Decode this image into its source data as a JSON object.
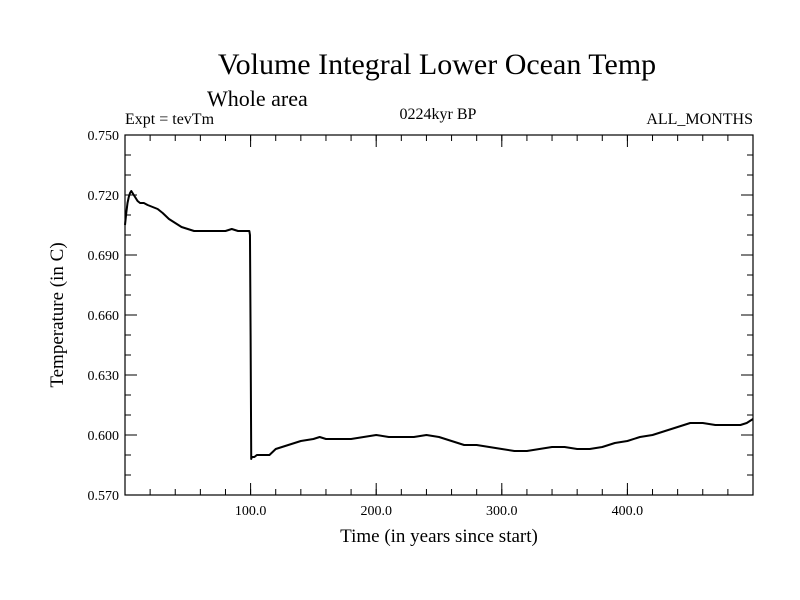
{
  "chart_data": {
    "type": "line",
    "title": "Volume Integral Lower Ocean Temp",
    "subtitle": "Whole area",
    "experiment_label": "Expt = tevTm",
    "period_label": "0224kyr BP",
    "months_label": "ALL_MONTHS",
    "xlabel": "Time (in years since start)",
    "ylabel": "Temperature (in C)",
    "xlim": [
      0,
      500
    ],
    "ylim": [
      0.57,
      0.75
    ],
    "x_tick_labels": [
      {
        "value": 100,
        "label": "100.0"
      },
      {
        "value": 200,
        "label": "200.0"
      },
      {
        "value": 300,
        "label": "300.0"
      },
      {
        "value": 400,
        "label": "400.0"
      }
    ],
    "y_tick_labels": [
      {
        "value": 0.75,
        "label": "0.750"
      },
      {
        "value": 0.72,
        "label": "0.720"
      },
      {
        "value": 0.69,
        "label": "0.690"
      },
      {
        "value": 0.66,
        "label": "0.660"
      },
      {
        "value": 0.63,
        "label": "0.630"
      },
      {
        "value": 0.6,
        "label": "0.600"
      },
      {
        "value": 0.57,
        "label": "0.570"
      }
    ],
    "grid": false,
    "series": [
      {
        "name": "Volume Integral Lower Ocean Temp",
        "color": "#000000",
        "x": [
          0,
          1,
          2,
          3,
          4,
          5,
          6,
          8,
          10,
          12,
          15,
          18,
          22,
          26,
          30,
          35,
          40,
          45,
          50,
          55,
          60,
          65,
          70,
          75,
          80,
          85,
          90,
          95,
          99,
          99.5,
          100,
          100.5,
          101,
          103,
          105,
          110,
          115,
          120,
          130,
          140,
          150,
          155,
          160,
          170,
          180,
          190,
          200,
          210,
          220,
          230,
          240,
          250,
          260,
          270,
          280,
          290,
          300,
          310,
          320,
          330,
          340,
          350,
          360,
          370,
          380,
          390,
          400,
          410,
          420,
          430,
          440,
          450,
          460,
          470,
          480,
          490,
          495,
          500
        ],
        "values": [
          0.705,
          0.711,
          0.716,
          0.719,
          0.721,
          0.722,
          0.721,
          0.719,
          0.717,
          0.716,
          0.716,
          0.715,
          0.714,
          0.713,
          0.711,
          0.708,
          0.706,
          0.704,
          0.703,
          0.702,
          0.702,
          0.702,
          0.702,
          0.702,
          0.702,
          0.703,
          0.702,
          0.702,
          0.702,
          0.7,
          0.65,
          0.588,
          0.589,
          0.589,
          0.59,
          0.59,
          0.59,
          0.593,
          0.595,
          0.597,
          0.598,
          0.599,
          0.598,
          0.598,
          0.598,
          0.599,
          0.6,
          0.599,
          0.599,
          0.599,
          0.6,
          0.599,
          0.597,
          0.595,
          0.595,
          0.594,
          0.593,
          0.592,
          0.592,
          0.593,
          0.594,
          0.594,
          0.593,
          0.593,
          0.594,
          0.596,
          0.597,
          0.599,
          0.6,
          0.602,
          0.604,
          0.606,
          0.606,
          0.605,
          0.605,
          0.605,
          0.606,
          0.608
        ]
      }
    ]
  }
}
